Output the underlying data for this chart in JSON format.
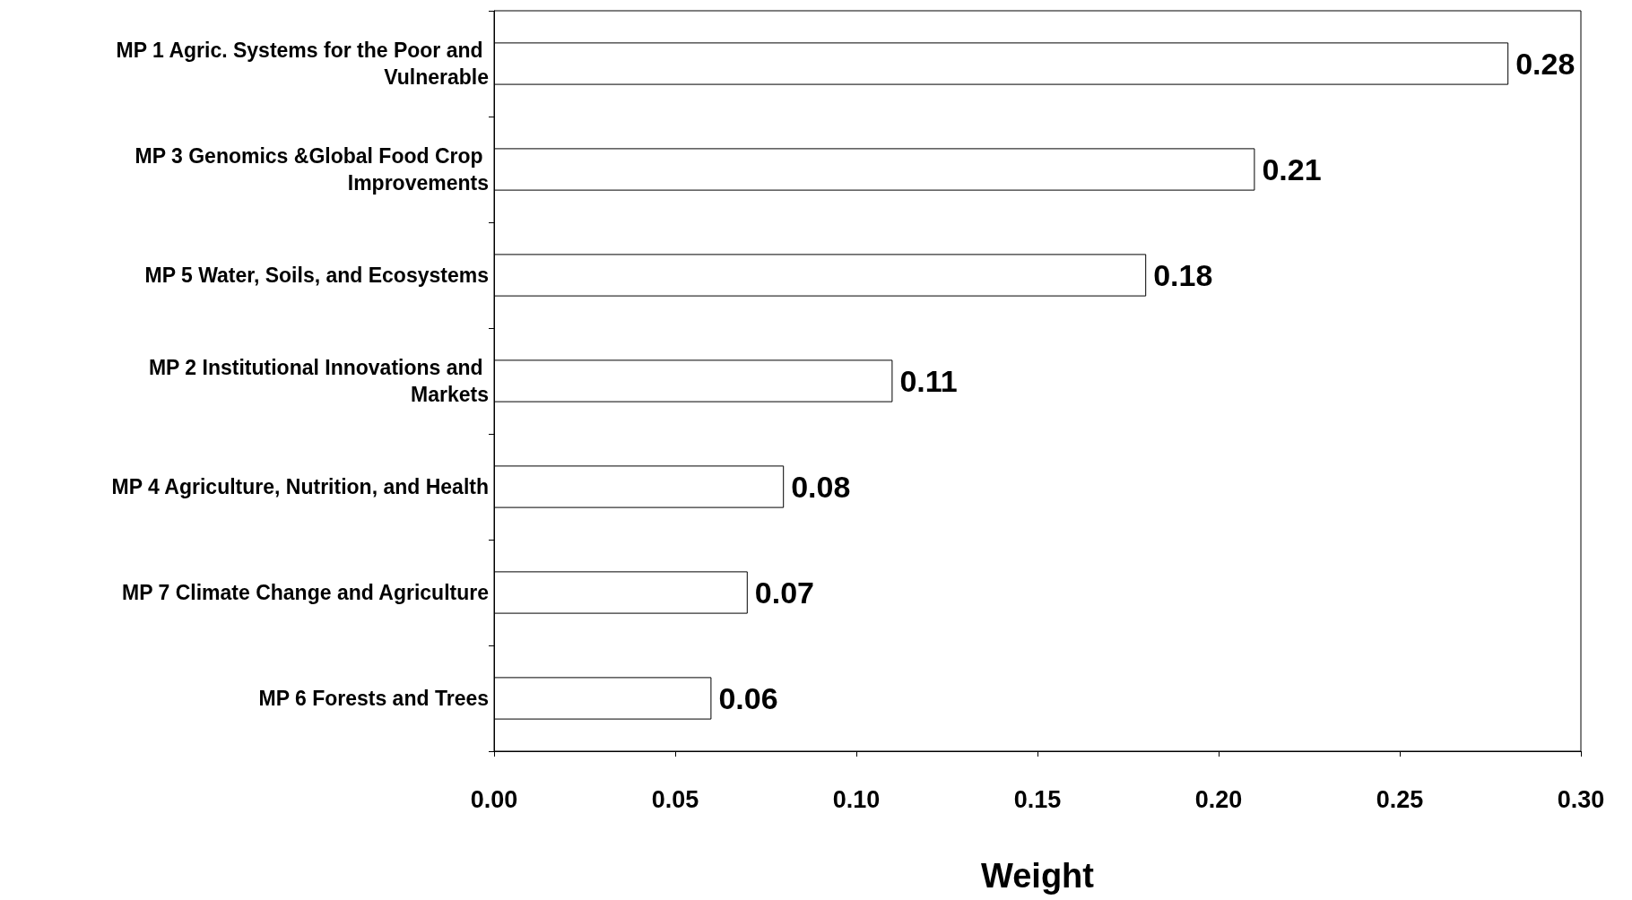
{
  "chart_data": {
    "type": "bar",
    "orientation": "horizontal",
    "xlabel": "Weight",
    "categories": [
      "MP 1 Agric. Systems for the Poor and Vulnerable",
      "MP 3 Genomics &Global Food Crop Improvements",
      "MP 5 Water, Soils, and Ecosystems",
      "MP 2 Institutional Innovations and Markets",
      "MP 4 Agriculture, Nutrition, and Health",
      "MP 7 Climate Change and Agriculture",
      "MP 6 Forests and Trees"
    ],
    "values": [
      0.28,
      0.21,
      0.18,
      0.11,
      0.08,
      0.07,
      0.06
    ],
    "color": "#ffffff",
    "data_labels": true,
    "xlim": [
      0,
      0.3
    ],
    "xticks": [
      {
        "value": 0,
        "label": "0.00"
      },
      {
        "value": 0.05,
        "label": "0.05"
      },
      {
        "value": 0.1,
        "label": "0.10"
      },
      {
        "value": 0.15,
        "label": "0.15"
      },
      {
        "value": 0.2,
        "label": "0.20"
      },
      {
        "value": 0.25,
        "label": "0.25"
      },
      {
        "value": 0.3,
        "label": "0.30"
      }
    ]
  }
}
